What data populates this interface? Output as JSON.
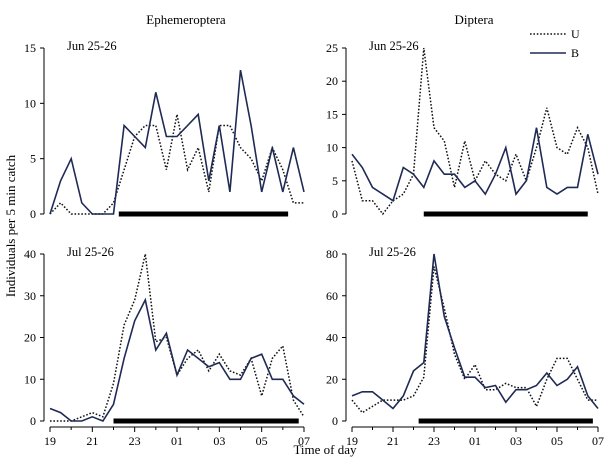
{
  "chart_data": {
    "type": "line",
    "column_titles": [
      "Ephemeroptera",
      "Diptera"
    ],
    "ylabel": "Individuals per 5 min catch",
    "xlabel": "Time of day",
    "x_tick_labels": [
      "19",
      "21",
      "23",
      "01",
      "03",
      "05",
      "07"
    ],
    "legend": [
      {
        "label": "U",
        "style": "dotted"
      },
      {
        "label": "B",
        "style": "solid"
      }
    ],
    "colors": {
      "U": "#111111",
      "B": "#1f2a55",
      "night_bar": "#000000"
    },
    "x_start_hour": 19,
    "x_end_hour": 31,
    "panels": [
      {
        "id": "eph_jun",
        "column": 0,
        "row": 0,
        "label": "Jun 25-26",
        "ylim": [
          0,
          15
        ],
        "y_ticks": [
          0,
          5,
          10,
          15
        ],
        "night_bar": [
          22.25,
          30.25
        ],
        "series": {
          "U": {
            "x": [
              19,
              19.5,
              20,
              20.5,
              21,
              21.5,
              22,
              22.5,
              23,
              23.5,
              24,
              24.5,
              25,
              25.5,
              26,
              26.5,
              27,
              27.5,
              28,
              28.5,
              29,
              29.5,
              30,
              30.5,
              31
            ],
            "y": [
              0,
              1,
              0,
              0,
              0,
              0,
              1,
              4,
              7,
              8,
              8,
              4,
              9,
              4,
              6,
              2,
              8,
              8,
              6,
              5,
              3,
              6,
              4,
              1,
              1
            ]
          },
          "B": {
            "x": [
              19,
              19.5,
              20,
              20.5,
              21,
              21.5,
              22,
              22.5,
              23,
              23.5,
              24,
              24.5,
              25,
              25.5,
              26,
              26.5,
              27,
              27.5,
              28,
              28.5,
              29,
              29.5,
              30,
              30.5,
              31
            ],
            "y": [
              0,
              3,
              5,
              1,
              0,
              0,
              0,
              8,
              7,
              6,
              11,
              7,
              7,
              8,
              9,
              3,
              8,
              2,
              13,
              8,
              2,
              6,
              2,
              6,
              2
            ]
          }
        }
      },
      {
        "id": "dip_jun",
        "column": 1,
        "row": 0,
        "label": "Jun 25-26",
        "ylim": [
          0,
          25
        ],
        "y_ticks": [
          0,
          5,
          10,
          15,
          20,
          25
        ],
        "night_bar": [
          22.5,
          30.5
        ],
        "series": {
          "U": {
            "x": [
              19,
              19.5,
              20,
              20.5,
              21,
              21.5,
              22,
              22.5,
              23,
              23.5,
              24,
              24.5,
              25,
              25.5,
              26,
              26.5,
              27,
              27.5,
              28,
              28.5,
              29,
              29.5,
              30,
              30.5,
              31
            ],
            "y": [
              8,
              2,
              2,
              0,
              2,
              3,
              6,
              25,
              13,
              11,
              4,
              11,
              5,
              8,
              6,
              5,
              9,
              5,
              10,
              16,
              10,
              9,
              13,
              10,
              3
            ]
          },
          "B": {
            "x": [
              19,
              19.5,
              20,
              20.5,
              21,
              21.5,
              22,
              22.5,
              23,
              23.5,
              24,
              24.5,
              25,
              25.5,
              26,
              26.5,
              27,
              27.5,
              28,
              28.5,
              29,
              29.5,
              30,
              30.5,
              31
            ],
            "y": [
              9,
              7,
              4,
              3,
              2,
              7,
              6,
              4,
              8,
              6,
              6,
              4,
              5,
              3,
              6,
              10,
              3,
              5,
              13,
              4,
              3,
              4,
              4,
              12,
              6
            ]
          }
        }
      },
      {
        "id": "eph_jul",
        "column": 0,
        "row": 1,
        "label": "Jul 25-26",
        "ylim": [
          0,
          40
        ],
        "y_ticks": [
          0,
          10,
          20,
          30,
          40
        ],
        "night_bar": [
          22,
          30.75
        ],
        "series": {
          "U": {
            "x": [
              19,
              19.5,
              20,
              20.5,
              21,
              21.5,
              22,
              22.5,
              23,
              23.5,
              24,
              24.5,
              25,
              25.5,
              26,
              26.5,
              27,
              27.5,
              28,
              28.5,
              29,
              29.5,
              30,
              30.5,
              31
            ],
            "y": [
              0,
              0,
              0,
              1,
              2,
              1,
              9,
              23,
              29,
              40,
              19,
              20,
              11,
              15,
              17,
              12,
              16,
              12,
              11,
              15,
              6,
              15,
              18,
              5,
              1
            ]
          },
          "B": {
            "x": [
              19,
              19.5,
              20,
              20.5,
              21,
              21.5,
              22,
              22.5,
              23,
              23.5,
              24,
              24.5,
              25,
              25.5,
              26,
              26.5,
              27,
              27.5,
              28,
              28.5,
              29,
              29.5,
              30,
              30.5,
              31
            ],
            "y": [
              3,
              2,
              0,
              0,
              1,
              0,
              4,
              15,
              24,
              29,
              17,
              21,
              11,
              17,
              15,
              13,
              14,
              10,
              10,
              15,
              16,
              10,
              10,
              6,
              4
            ]
          }
        }
      },
      {
        "id": "dip_jul",
        "column": 1,
        "row": 1,
        "label": "Jul 25-26",
        "ylim": [
          0,
          80
        ],
        "y_ticks": [
          0,
          20,
          40,
          60,
          80
        ],
        "night_bar": [
          22.25,
          30.75
        ],
        "series": {
          "U": {
            "x": [
              19,
              19.5,
              20,
              20.5,
              21,
              21.5,
              22,
              22.5,
              23,
              23.5,
              24,
              24.5,
              25,
              25.5,
              26,
              26.5,
              27,
              27.5,
              28,
              28.5,
              29,
              29.5,
              30,
              30.5,
              31
            ],
            "y": [
              10,
              4,
              7,
              10,
              10,
              10,
              12,
              21,
              74,
              54,
              32,
              20,
              27,
              15,
              15,
              18,
              16,
              16,
              7,
              20,
              30,
              30,
              20,
              10,
              10
            ]
          },
          "B": {
            "x": [
              19,
              19.5,
              20,
              20.5,
              21,
              21.5,
              22,
              22.5,
              23,
              23.5,
              24,
              24.5,
              25,
              25.5,
              26,
              26.5,
              27,
              27.5,
              28,
              28.5,
              29,
              29.5,
              30,
              30.5,
              31
            ],
            "y": [
              12,
              14,
              14,
              10,
              6,
              12,
              24,
              28,
              80,
              50,
              35,
              21,
              21,
              16,
              17,
              9,
              15,
              15,
              17,
              23,
              17,
              20,
              26,
              12,
              6
            ]
          }
        }
      }
    ]
  }
}
